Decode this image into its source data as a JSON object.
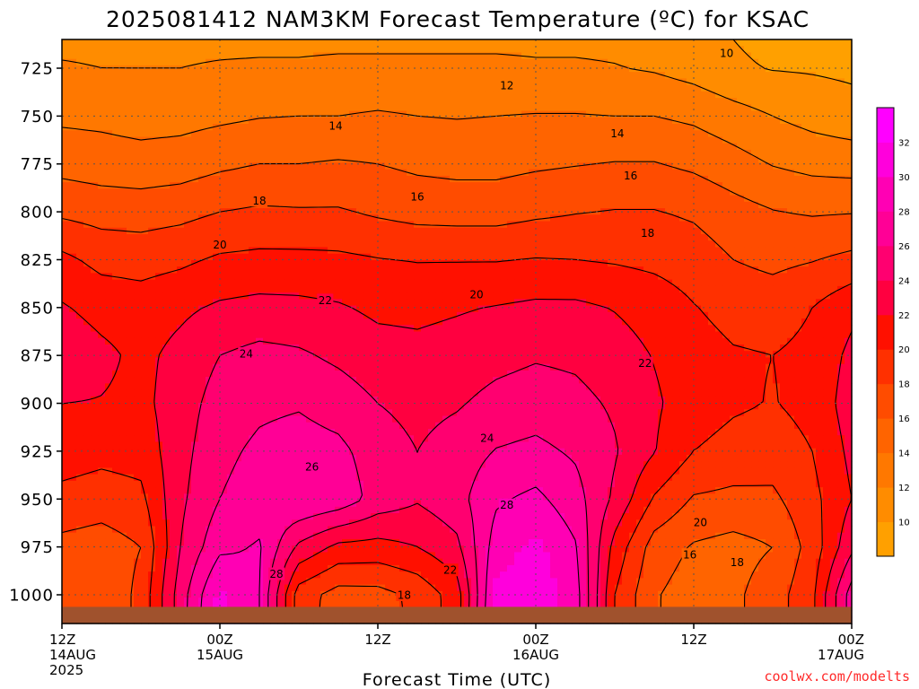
{
  "colors": {
    "ground": "#a0522d",
    "credit": "#ff2a2a",
    "palette": [
      "#ffa000",
      "#ff8c00",
      "#ff7800",
      "#ff6400",
      "#ff4c00",
      "#ff3000",
      "#ff1000",
      "#ff0040",
      "#ff0070",
      "#ff0096",
      "#ff00b4",
      "#ff00dc",
      "#ff00ff"
    ]
  },
  "credit": "coolwx.com/modelts",
  "chart_data": {
    "type": "heatmap",
    "title": "2025081412 NAM3KM Forecast Temperature (ºC) for KSAC",
    "xlabel": "Forecast Time (UTC)",
    "ylabel": "",
    "x_ticks": [
      {
        "value": 0,
        "lines": [
          "12Z",
          "14AUG",
          "2025"
        ]
      },
      {
        "value": 12,
        "lines": [
          "00Z",
          "15AUG"
        ]
      },
      {
        "value": 24,
        "lines": [
          "12Z"
        ]
      },
      {
        "value": 36,
        "lines": [
          "00Z",
          "16AUG"
        ]
      },
      {
        "value": 48,
        "lines": [
          "12Z"
        ]
      },
      {
        "value": 60,
        "lines": [
          "00Z",
          "17AUG"
        ]
      }
    ],
    "xlim": [
      0,
      60
    ],
    "y_ticks": [
      725,
      750,
      775,
      800,
      825,
      850,
      875,
      900,
      925,
      950,
      975,
      1000
    ],
    "ylim": [
      710,
      1015
    ],
    "y_inverted": true,
    "grid": true,
    "colorbar": {
      "levels": [
        8,
        10,
        12,
        14,
        16,
        18,
        20,
        22,
        24,
        26,
        28,
        30,
        32,
        34
      ],
      "tick_labels": [
        10,
        12,
        14,
        16,
        18,
        20,
        22,
        24,
        26,
        28,
        30,
        32
      ]
    },
    "contour_levels": [
      10,
      12,
      14,
      16,
      18,
      20,
      22,
      24,
      26,
      28
    ],
    "contour_labels": [
      {
        "text": "10",
        "x": 50.5,
        "y": 717
      },
      {
        "text": "12",
        "x": 33.8,
        "y": 734
      },
      {
        "text": "14",
        "x": 20.8,
        "y": 755
      },
      {
        "text": "14",
        "x": 42.2,
        "y": 759
      },
      {
        "text": "16",
        "x": 27,
        "y": 792
      },
      {
        "text": "16",
        "x": 43.2,
        "y": 781
      },
      {
        "text": "18",
        "x": 15,
        "y": 794
      },
      {
        "text": "18",
        "x": 44.5,
        "y": 811
      },
      {
        "text": "20",
        "x": 12,
        "y": 817
      },
      {
        "text": "20",
        "x": 31.5,
        "y": 843
      },
      {
        "text": "22",
        "x": 20,
        "y": 846
      },
      {
        "text": "22",
        "x": 44.3,
        "y": 879
      },
      {
        "text": "24",
        "x": 14,
        "y": 874
      },
      {
        "text": "24",
        "x": 32.3,
        "y": 918
      },
      {
        "text": "26",
        "x": 19,
        "y": 933
      },
      {
        "text": "28",
        "x": 33.8,
        "y": 953
      },
      {
        "text": "28",
        "x": 16.3,
        "y": 989
      },
      {
        "text": "22",
        "x": 29.5,
        "y": 987
      },
      {
        "text": "18",
        "x": 26,
        "y": 1000
      },
      {
        "text": "20",
        "x": 48.5,
        "y": 962
      },
      {
        "text": "18",
        "x": 51.3,
        "y": 983
      },
      {
        "text": "16",
        "x": 47.7,
        "y": 979
      }
    ],
    "columns_x": [
      0,
      3,
      6,
      9,
      12,
      15,
      18,
      21,
      24,
      27,
      30,
      33,
      36,
      39,
      42,
      45,
      48,
      51,
      54,
      57,
      60
    ],
    "rows_p": [
      710,
      725,
      750,
      775,
      800,
      825,
      850,
      875,
      900,
      925,
      950,
      975,
      1000,
      1015
    ],
    "values": [
      [
        11.5,
        11.5,
        11.5,
        11.5,
        11.5,
        11.5,
        11.5,
        11.5,
        11.5,
        11.5,
        11.5,
        11.5,
        11.5,
        11.5,
        11.5,
        11.0,
        10.5,
        10.0,
        9.5,
        9.5,
        9.5
      ],
      [
        12.2,
        12.0,
        12.0,
        12.0,
        12.2,
        12.3,
        12.3,
        12.5,
        12.5,
        12.5,
        12.5,
        12.5,
        12.3,
        12.3,
        12.1,
        11.8,
        11.2,
        10.3,
        9.9,
        9.8,
        9.6
      ],
      [
        13.6,
        13.5,
        13.2,
        13.3,
        13.6,
        13.9,
        14.0,
        14.0,
        14.2,
        14.0,
        13.9,
        14.0,
        14.1,
        14.1,
        14.0,
        14.0,
        13.6,
        12.8,
        12.0,
        11.3,
        10.8
      ],
      [
        15.3,
        15.0,
        14.8,
        15.0,
        15.6,
        16.0,
        16.0,
        16.2,
        16.0,
        15.6,
        15.4,
        15.4,
        15.7,
        15.9,
        16.1,
        16.1,
        15.6,
        14.8,
        13.9,
        13.4,
        13.2
      ],
      [
        17.6,
        17.2,
        17.1,
        17.4,
        18.0,
        18.3,
        18.2,
        18.2,
        17.7,
        17.3,
        17.2,
        17.2,
        17.6,
        17.9,
        18.1,
        18.1,
        17.7,
        16.8,
        16.1,
        15.8,
        15.9
      ],
      [
        20.5,
        19.4,
        19.2,
        19.6,
        20.3,
        20.5,
        20.5,
        20.4,
        20.1,
        19.9,
        19.9,
        19.9,
        20.1,
        20.0,
        19.8,
        19.5,
        19.0,
        18.0,
        17.5,
        17.9,
        18.5
      ],
      [
        22.2,
        21.3,
        21.0,
        21.6,
        22.3,
        22.6,
        22.5,
        22.2,
        21.6,
        21.5,
        21.8,
        22.1,
        22.4,
        22.4,
        21.9,
        21.2,
        20.1,
        19.3,
        19.1,
        20.0,
        21.5
      ],
      [
        23.5,
        22.5,
        21.5,
        22.6,
        24.0,
        24.6,
        24.3,
        23.6,
        22.8,
        22.6,
        22.9,
        23.4,
        23.8,
        23.6,
        22.9,
        21.9,
        20.9,
        20.2,
        20.0,
        20.5,
        22.5
      ],
      [
        22.0,
        21.9,
        21.5,
        23.0,
        24.9,
        25.6,
        25.8,
        25.1,
        24.0,
        23.4,
        23.8,
        24.6,
        25.0,
        24.6,
        23.7,
        22.3,
        21.0,
        20.3,
        19.9,
        20.6,
        23.0
      ],
      [
        21.0,
        20.6,
        20.8,
        23.3,
        25.5,
        26.4,
        26.9,
        26.5,
        25.0,
        24.0,
        24.9,
        26.1,
        26.5,
        25.7,
        24.2,
        22.1,
        20.0,
        19.3,
        19.0,
        20.0,
        22.5
      ],
      [
        19.4,
        19.0,
        19.5,
        23.6,
        26.0,
        27.0,
        28.0,
        27.3,
        25.2,
        24.2,
        25.3,
        27.7,
        28.5,
        26.8,
        23.6,
        19.8,
        17.8,
        17.5,
        17.6,
        19.4,
        22.0
      ],
      [
        17.4,
        17.0,
        18.0,
        24.0,
        27.5,
        28.2,
        23.6,
        21.5,
        21.3,
        22.0,
        23.5,
        29.0,
        30.5,
        28.2,
        21.3,
        17.1,
        15.8,
        15.3,
        16.0,
        18.8,
        23.5
      ],
      [
        17.0,
        16.5,
        18.5,
        25.0,
        30.5,
        28.0,
        19.0,
        17.2,
        17.3,
        18.5,
        21.0,
        30.5,
        31.5,
        29.0,
        20.0,
        16.2,
        15.0,
        15.6,
        17.0,
        19.5,
        27.0
      ],
      [
        17.0,
        16.5,
        18.5,
        25.0,
        31.0,
        28.0,
        19.0,
        17.0,
        17.0,
        18.5,
        21.0,
        31.0,
        32.0,
        29.0,
        20.0,
        16.2,
        15.0,
        15.6,
        17.0,
        19.5,
        27.0
      ]
    ]
  }
}
